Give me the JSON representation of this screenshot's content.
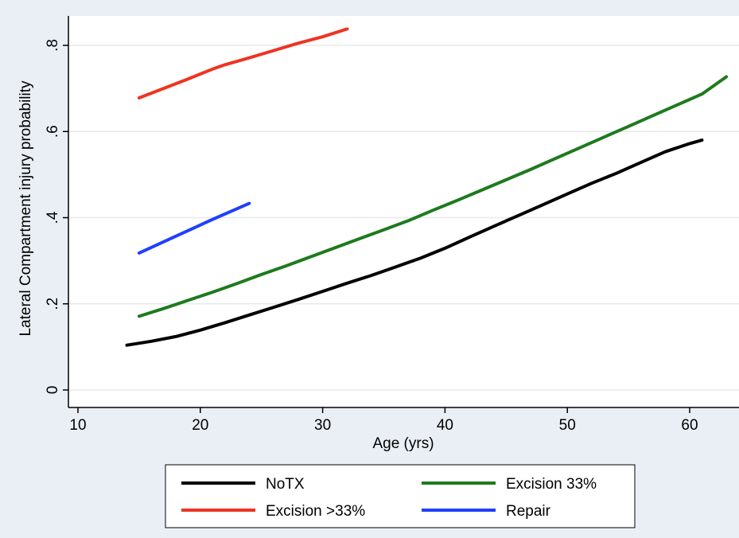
{
  "chart_data": {
    "type": "line",
    "title": "",
    "xlabel": "Age (yrs)",
    "ylabel": "Lateral Compartment injury probability",
    "xlim": [
      9,
      64
    ],
    "ylim": [
      -0.02,
      0.86
    ],
    "xticks": [
      10,
      20,
      30,
      40,
      50,
      60
    ],
    "xtick_labels": [
      "10",
      "20",
      "30",
      "40",
      "50",
      "60"
    ],
    "yticks": [
      0,
      0.2,
      0.4,
      0.6,
      0.8
    ],
    "ytick_labels": [
      "0",
      ".2",
      ".4",
      ".6",
      ".8"
    ],
    "grid": true,
    "legend_position": "bottom",
    "series": [
      {
        "name": "NoTX",
        "color": "#000000",
        "x": [
          14,
          16,
          18,
          20,
          22,
          24,
          26,
          28,
          30,
          32,
          34,
          36,
          38,
          40,
          42,
          44,
          46,
          48,
          50,
          52,
          54,
          56,
          58,
          60,
          61
        ],
        "y": [
          0.104,
          0.113,
          0.124,
          0.139,
          0.156,
          0.174,
          0.192,
          0.21,
          0.229,
          0.248,
          0.266,
          0.286,
          0.306,
          0.329,
          0.355,
          0.38,
          0.405,
          0.43,
          0.455,
          0.48,
          0.503,
          0.528,
          0.553,
          0.572,
          0.58
        ]
      },
      {
        "name": "Excision 33%",
        "color": "#1e7a1e",
        "x": [
          15,
          17,
          19,
          21,
          23,
          25,
          27,
          29,
          31,
          33,
          35,
          37,
          39,
          41,
          43,
          45,
          47,
          49,
          51,
          53,
          55,
          57,
          59,
          61,
          63
        ],
        "y": [
          0.171,
          0.189,
          0.208,
          0.227,
          0.247,
          0.268,
          0.288,
          0.309,
          0.33,
          0.351,
          0.372,
          0.393,
          0.417,
          0.44,
          0.464,
          0.488,
          0.512,
          0.537,
          0.562,
          0.587,
          0.612,
          0.637,
          0.662,
          0.687,
          0.727
        ]
      },
      {
        "name": "Excision >33%",
        "color": "#ee3322",
        "x": [
          15,
          17,
          19,
          21,
          22,
          24,
          26,
          28,
          30,
          32
        ],
        "y": [
          0.678,
          0.7,
          0.722,
          0.745,
          0.755,
          0.771,
          0.788,
          0.805,
          0.82,
          0.838
        ]
      },
      {
        "name": "Repair",
        "color": "#1f3fff",
        "x": [
          15,
          18,
          21,
          24
        ],
        "y": [
          0.318,
          0.357,
          0.396,
          0.433
        ]
      }
    ]
  }
}
